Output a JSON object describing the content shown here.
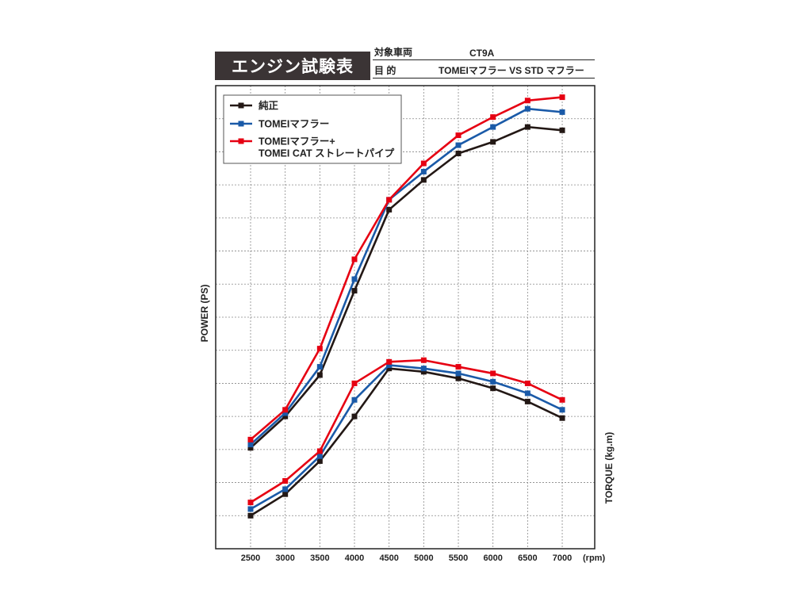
{
  "header": {
    "title": "エンジン試験表",
    "rows": [
      {
        "label": "対象車両",
        "value": "CT9A"
      },
      {
        "label": "目 的",
        "value": "TOMEIマフラー  VS STD マフラー"
      }
    ]
  },
  "chart_data": {
    "type": "line",
    "x": [
      2500,
      3000,
      3500,
      4000,
      4500,
      5000,
      5500,
      6000,
      6500,
      7000
    ],
    "xlabel": "(rpm)",
    "ylabel_left": "POWER (PS)",
    "ylabel_right": "TORQUE (kg.m)",
    "grid": true,
    "legend_position": "top-left",
    "y_scale": [
      0,
      14
    ],
    "series": [
      {
        "name": "純正",
        "color": "#231815",
        "power": [
          3.05,
          4.0,
          5.25,
          7.8,
          10.25,
          11.15,
          11.95,
          12.3,
          12.75,
          12.65
        ],
        "torque": [
          1.0,
          1.65,
          2.65,
          4.0,
          5.45,
          5.35,
          5.15,
          4.85,
          4.45,
          3.95
        ]
      },
      {
        "name": "TOMEIマフラー",
        "color": "#1a5aa8",
        "power": [
          3.15,
          4.1,
          5.5,
          8.15,
          10.55,
          11.4,
          12.2,
          12.75,
          13.3,
          13.2
        ],
        "torque": [
          1.2,
          1.8,
          2.8,
          4.5,
          5.55,
          5.45,
          5.3,
          5.05,
          4.7,
          4.2
        ]
      },
      {
        "name": "TOMEIマフラー+\nTOMEI CAT ストレートパイプ",
        "color": "#e60012",
        "power": [
          3.3,
          4.2,
          6.05,
          8.75,
          10.55,
          11.65,
          12.5,
          13.05,
          13.55,
          13.65
        ],
        "torque": [
          1.4,
          2.05,
          2.95,
          5.0,
          5.65,
          5.7,
          5.5,
          5.3,
          5.0,
          4.5
        ]
      }
    ]
  }
}
